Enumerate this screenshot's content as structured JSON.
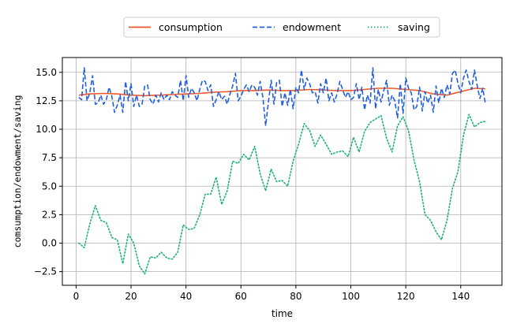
{
  "chart_data": {
    "type": "line",
    "title": "",
    "xlabel": "time",
    "ylabel": "comsumption/endowment/saving",
    "xlim": [
      -5,
      155
    ],
    "ylim": [
      -3.7,
      16.3
    ],
    "xticks": [
      0,
      20,
      40,
      60,
      80,
      100,
      120,
      140
    ],
    "xtick_labels": [
      "0",
      "20",
      "40",
      "60",
      "80",
      "100",
      "120",
      "140"
    ],
    "yticks": [
      -2.5,
      0.0,
      2.5,
      5.0,
      7.5,
      10.0,
      12.5,
      15.0
    ],
    "ytick_labels": [
      "−2.5",
      "0.0",
      "2.5",
      "5.0",
      "7.5",
      "10.0",
      "12.5",
      "15.0"
    ],
    "grid": true,
    "legend_position": "top-center",
    "series": [
      {
        "name": "consumption",
        "color": "#f05a28",
        "style": "solid",
        "x": [
          1,
          5,
          10,
          15,
          20,
          25,
          30,
          35,
          40,
          45,
          50,
          55,
          60,
          65,
          70,
          75,
          80,
          85,
          90,
          95,
          100,
          105,
          110,
          115,
          120,
          125,
          130,
          135,
          140,
          145,
          149
        ],
        "y": [
          13.0,
          13.1,
          13.15,
          13.1,
          13.0,
          12.95,
          13.0,
          13.05,
          13.1,
          13.15,
          13.25,
          13.3,
          13.4,
          13.4,
          13.45,
          13.4,
          13.4,
          13.5,
          13.45,
          13.4,
          13.4,
          13.5,
          13.6,
          13.6,
          13.5,
          13.4,
          13.1,
          13.0,
          13.3,
          13.6,
          13.55
        ]
      },
      {
        "name": "endowment",
        "color": "#1f5fe0",
        "style": "dashed",
        "x": [
          1,
          2,
          3,
          4,
          5,
          6,
          7,
          8,
          9,
          10,
          11,
          12,
          13,
          14,
          15,
          16,
          17,
          18,
          19,
          20,
          21,
          22,
          23,
          24,
          25,
          26,
          27,
          28,
          29,
          30,
          31,
          32,
          33,
          34,
          35,
          36,
          37,
          38,
          39,
          40,
          41,
          42,
          43,
          44,
          45,
          46,
          47,
          48,
          49,
          50,
          51,
          52,
          53,
          54,
          55,
          56,
          57,
          58,
          59,
          60,
          61,
          62,
          63,
          64,
          65,
          66,
          67,
          68,
          69,
          70,
          71,
          72,
          73,
          74,
          75,
          76,
          77,
          78,
          79,
          80,
          81,
          82,
          83,
          84,
          85,
          86,
          87,
          88,
          89,
          90,
          91,
          92,
          93,
          94,
          95,
          96,
          97,
          98,
          99,
          100,
          101,
          102,
          103,
          104,
          105,
          106,
          107,
          108,
          109,
          110,
          111,
          112,
          113,
          114,
          115,
          116,
          117,
          118,
          119,
          120,
          121,
          122,
          123,
          124,
          125,
          126,
          127,
          128,
          129,
          130,
          131,
          132,
          133,
          134,
          135,
          136,
          137,
          138,
          139,
          140,
          141,
          142,
          143,
          144,
          145,
          146,
          147,
          148,
          149
        ],
        "y": [
          12.8,
          12.6,
          15.4,
          12.5,
          13.2,
          14.7,
          12.2,
          12.3,
          13.0,
          12.2,
          12.6,
          13.7,
          12.9,
          11.5,
          12.1,
          13.0,
          11.5,
          14.2,
          12.5,
          14.0,
          12.0,
          13.0,
          12.0,
          12.2,
          13.8,
          13.9,
          12.6,
          12.2,
          13.0,
          12.4,
          13.2,
          12.6,
          13.0,
          12.6,
          13.3,
          13.0,
          12.8,
          14.3,
          12.5,
          14.7,
          12.8,
          13.6,
          13.2,
          12.5,
          13.5,
          14.3,
          14.2,
          13.4,
          13.9,
          12.0,
          12.6,
          13.3,
          12.6,
          12.9,
          12.2,
          13.1,
          13.8,
          14.9,
          12.5,
          12.9,
          13.5,
          13.9,
          13.3,
          13.9,
          13.7,
          13.0,
          14.2,
          12.8,
          10.3,
          12.4,
          14.3,
          12.2,
          14.1,
          14.3,
          12.0,
          13.2,
          12.1,
          13.5,
          11.8,
          13.7,
          13.2,
          15.2,
          13.5,
          14.5,
          14.0,
          13.2,
          13.3,
          12.3,
          14.0,
          13.2,
          14.5,
          12.5,
          13.2,
          12.4,
          13.1,
          14.2,
          13.5,
          12.8,
          13.3,
          12.6,
          12.8,
          14.0,
          12.6,
          13.7,
          11.7,
          13.0,
          12.3,
          15.4,
          11.8,
          13.5,
          12.4,
          13.4,
          14.3,
          12.1,
          13.0,
          12.5,
          11.0,
          14.0,
          11.4,
          14.5,
          13.6,
          13.2,
          11.7,
          12.0,
          13.7,
          11.6,
          13.3,
          12.3,
          13.0,
          11.5,
          13.8,
          12.3,
          13.6,
          12.8,
          13.9,
          13.1,
          14.9,
          15.2,
          14.0,
          13.2,
          14.5,
          15.2,
          14.2,
          13.5,
          15.2,
          13.8,
          12.7,
          13.6,
          12.2
        ],
        "note": "generated as noisy series from visible trace"
      },
      {
        "name": "saving",
        "color": "#1aaf7f",
        "style": "dotted",
        "x": [
          1,
          3,
          5,
          7,
          9,
          11,
          13,
          15,
          17,
          19,
          21,
          23,
          25,
          27,
          29,
          31,
          33,
          35,
          37,
          39,
          41,
          43,
          45,
          47,
          49,
          51,
          53,
          55,
          57,
          59,
          61,
          63,
          65,
          67,
          69,
          71,
          73,
          75,
          77,
          79,
          81,
          83,
          85,
          87,
          89,
          91,
          93,
          95,
          97,
          99,
          101,
          103,
          105,
          107,
          109,
          111,
          113,
          115,
          117,
          119,
          121,
          123,
          125,
          127,
          129,
          131,
          133,
          135,
          137,
          139,
          141,
          143,
          145,
          147,
          149
        ],
        "y": [
          0.0,
          -0.4,
          1.7,
          3.3,
          2.0,
          1.8,
          0.5,
          0.3,
          -1.8,
          0.8,
          0.0,
          -2.0,
          -2.7,
          -1.2,
          -1.3,
          -0.8,
          -1.3,
          -1.4,
          -0.8,
          1.6,
          1.2,
          1.3,
          2.5,
          4.3,
          4.3,
          5.8,
          3.4,
          4.6,
          7.2,
          7.0,
          7.8,
          7.3,
          8.5,
          6.1,
          4.6,
          6.5,
          5.4,
          5.5,
          5.0,
          7.2,
          8.7,
          10.5,
          9.9,
          8.5,
          9.5,
          8.7,
          7.8,
          8.0,
          8.1,
          7.6,
          9.3,
          8.0,
          9.8,
          10.6,
          10.9,
          11.2,
          9.2,
          8.0,
          10.3,
          11.1,
          9.9,
          7.3,
          5.4,
          2.5,
          2.0,
          1.0,
          0.3,
          2.0,
          4.8,
          6.3,
          9.5,
          11.3,
          10.2,
          10.6,
          10.7
        ]
      }
    ]
  }
}
